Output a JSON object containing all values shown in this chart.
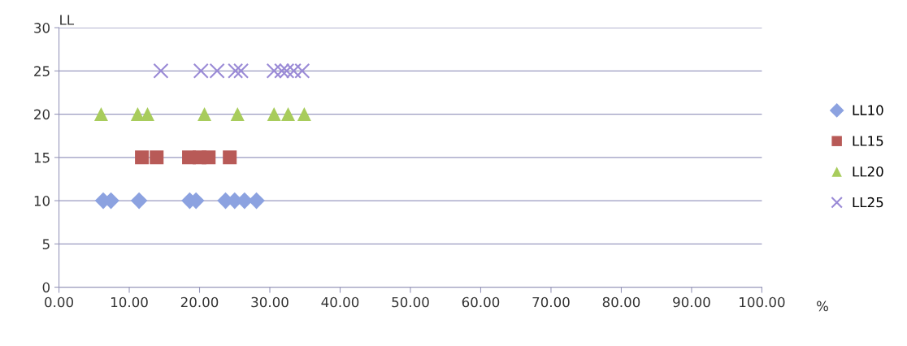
{
  "chart_data": {
    "type": "scatter",
    "xlabel": "%",
    "ylabel": "LL",
    "series": [
      {
        "name": "LL10",
        "color": "#8ca2e0",
        "marker": "diamond",
        "x": [
          6.3,
          7.4,
          11.4,
          18.6,
          19.5,
          23.7,
          25.0,
          26.4,
          28.1
        ],
        "values": [
          10,
          10,
          10,
          10,
          10,
          10,
          10,
          10,
          10
        ]
      },
      {
        "name": "LL15",
        "color": "#b85a57",
        "marker": "square",
        "x": [
          11.8,
          13.9,
          18.5,
          20.0,
          21.3,
          24.3
        ],
        "values": [
          15,
          15,
          15,
          15,
          15,
          15
        ]
      },
      {
        "name": "LL20",
        "color": "#a8cc5c",
        "marker": "triangle",
        "x": [
          6.0,
          11.2,
          12.6,
          20.7,
          25.4,
          30.6,
          32.6,
          34.9
        ],
        "values": [
          20,
          20,
          20,
          20,
          20,
          20,
          20,
          20
        ]
      },
      {
        "name": "LL25",
        "color": "#9a8ad6",
        "marker": "cross",
        "x": [
          14.5,
          20.2,
          22.5,
          25.1,
          25.9,
          30.6,
          31.7,
          32.4,
          33.4,
          34.6
        ],
        "values": [
          25,
          25,
          25,
          25,
          25,
          25,
          25,
          25,
          25,
          25
        ]
      }
    ],
    "xlim": [
      0,
      100
    ],
    "xticks": [
      {
        "value": 0,
        "label": "0.00"
      },
      {
        "value": 10,
        "label": "10.00"
      },
      {
        "value": 20,
        "label": "20.00"
      },
      {
        "value": 30,
        "label": "30.00"
      },
      {
        "value": 40,
        "label": "40.00"
      },
      {
        "value": 50,
        "label": "50.00"
      },
      {
        "value": 60,
        "label": "60.00"
      },
      {
        "value": 70,
        "label": "70.00"
      },
      {
        "value": 80,
        "label": "80.00"
      },
      {
        "value": 90,
        "label": "90.00"
      },
      {
        "value": 100,
        "label": "100.00"
      }
    ],
    "ylim": [
      0,
      30
    ],
    "yticks": [
      0,
      5,
      10,
      15,
      20,
      25,
      30
    ],
    "grid": "y",
    "legend": "right"
  }
}
